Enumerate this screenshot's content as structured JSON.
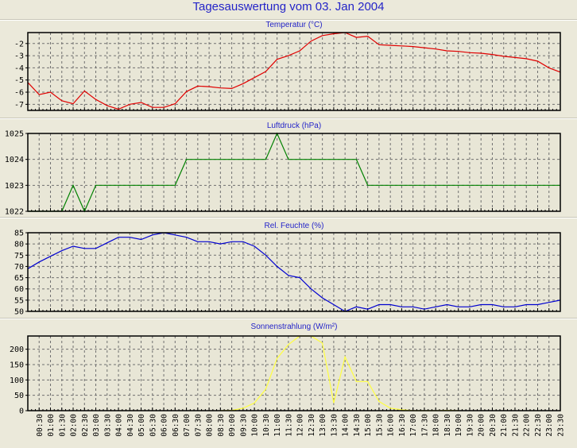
{
  "title": "Tagesauswertung vom 03. Jan 2004",
  "colors": {
    "background": "#ebe9da",
    "plot_background": "#e8e6d6",
    "title": "#2424c8",
    "grid": "#707070"
  },
  "chart_data": [
    {
      "type": "line",
      "title": "Temperatur (°C)",
      "color": "#e00000",
      "ylim": [
        -7.5,
        -1.1
      ],
      "yticks": [
        -2,
        -3,
        -4,
        -5,
        -6,
        -7
      ],
      "grid": true,
      "values": [
        -5.2,
        -6.2,
        -6.0,
        -6.7,
        -6.95,
        -5.9,
        -6.6,
        -7.1,
        -7.4,
        -7.0,
        -6.85,
        -7.25,
        -7.25,
        -6.95,
        -5.95,
        -5.5,
        -5.55,
        -5.65,
        -5.7,
        -5.3,
        -4.8,
        -4.3,
        -3.3,
        -3.0,
        -2.6,
        -1.8,
        -1.35,
        -1.2,
        -1.1,
        -1.5,
        -1.4,
        -2.1,
        -2.15,
        -2.2,
        -2.25,
        -2.35,
        -2.45,
        -2.6,
        -2.65,
        -2.75,
        -2.8,
        -2.9,
        -3.05,
        -3.15,
        -3.25,
        -3.45,
        -4.0,
        -4.35
      ]
    },
    {
      "type": "line",
      "title": "Luftdruck (hPa)",
      "color": "#008000",
      "ylim": [
        1022,
        1025
      ],
      "yticks": [
        1025,
        1024,
        1023,
        1022
      ],
      "grid": true,
      "values": [
        1022,
        1022,
        1022,
        1022,
        1023,
        1022,
        1023,
        1023,
        1023,
        1023,
        1023,
        1023,
        1023,
        1023,
        1024,
        1024,
        1024,
        1024,
        1024,
        1024,
        1024,
        1024,
        1025,
        1024,
        1024,
        1024,
        1024,
        1024,
        1024,
        1024,
        1023,
        1023,
        1023,
        1023,
        1023,
        1023,
        1023,
        1023,
        1023,
        1023,
        1023,
        1023,
        1023,
        1023,
        1023,
        1023,
        1023,
        1023
      ]
    },
    {
      "type": "line",
      "title": "Rel. Feuchte (%)",
      "color": "#0000d0",
      "ylim": [
        50,
        85
      ],
      "yticks": [
        85,
        80,
        75,
        70,
        65,
        60,
        55,
        50
      ],
      "grid": true,
      "values": [
        69,
        72,
        74.5,
        77,
        79,
        78,
        78,
        80.5,
        83,
        83,
        82,
        84,
        85,
        84,
        83,
        81,
        81,
        80,
        81,
        81,
        79,
        75,
        70,
        66,
        65,
        60,
        56,
        53,
        50,
        52,
        51,
        53,
        53,
        52,
        52,
        51,
        52,
        53,
        52,
        52,
        53,
        53,
        52,
        52,
        53,
        53,
        54,
        55
      ]
    },
    {
      "type": "line",
      "title": "Sonnenstrahlung (W/m²)",
      "color": "#ffff40",
      "ylim": [
        0,
        243
      ],
      "yticks": [
        200,
        150,
        100,
        50,
        0
      ],
      "grid": true,
      "values": [
        null,
        null,
        null,
        null,
        null,
        null,
        null,
        null,
        null,
        null,
        null,
        null,
        null,
        null,
        null,
        null,
        null,
        0,
        1,
        8,
        25,
        70,
        170,
        215,
        243,
        243,
        220,
        25,
        175,
        95,
        95,
        30,
        8,
        3,
        0,
        0,
        0,
        1,
        0,
        null,
        null,
        null,
        null,
        null,
        null,
        null,
        null,
        null
      ]
    }
  ],
  "x_ticks": [
    "00:30",
    "01:00",
    "01:30",
    "02:00",
    "02:30",
    "03:00",
    "03:30",
    "04:00",
    "04:30",
    "05:00",
    "05:30",
    "06:00",
    "06:30",
    "07:00",
    "07:30",
    "08:00",
    "08:30",
    "09:00",
    "09:30",
    "10:00",
    "10:30",
    "11:00",
    "11:30",
    "12:00",
    "12:30",
    "13:00",
    "13:30",
    "14:00",
    "14:30",
    "15:00",
    "15:30",
    "16:00",
    "16:30",
    "17:00",
    "17:30",
    "18:00",
    "18:30",
    "19:00",
    "19:30",
    "20:00",
    "20:30",
    "21:00",
    "21:30",
    "22:00",
    "22:30",
    "23:00",
    "23:30"
  ]
}
